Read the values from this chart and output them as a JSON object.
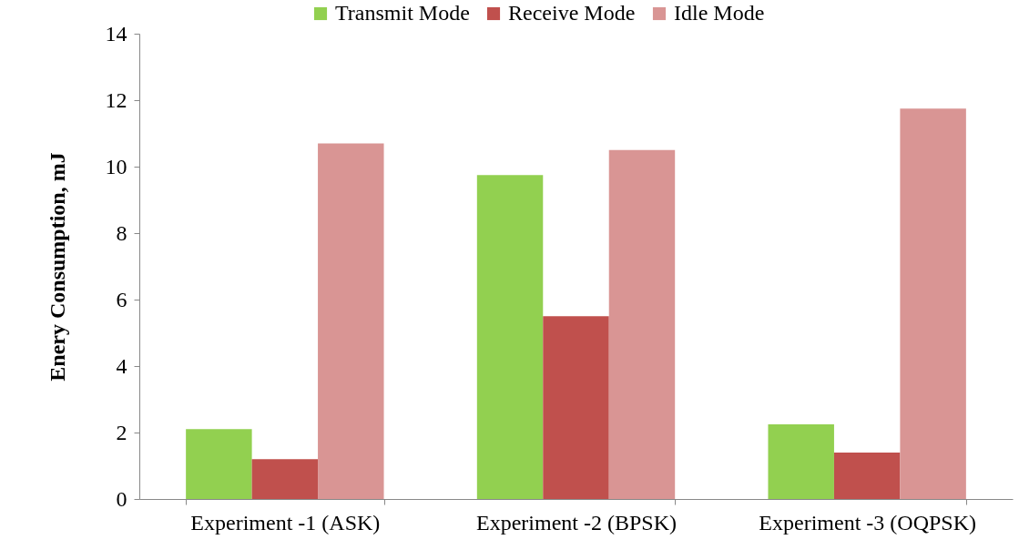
{
  "chart_data": {
    "type": "bar",
    "ylabel": "Enery Consumption, mJ",
    "categories": [
      "Experiment -1 (ASK)",
      "Experiment -2 (BPSK)",
      "Experiment -3 (OQPSK)"
    ],
    "series": [
      {
        "name": "Transmit Mode",
        "color": "#92d050",
        "values": [
          2.1,
          9.75,
          2.25
        ]
      },
      {
        "name": "Receive Mode",
        "color": "#c0504d",
        "values": [
          1.2,
          5.5,
          1.4
        ]
      },
      {
        "name": "Idle Mode",
        "color": "#d99594",
        "values": [
          10.7,
          10.5,
          11.75
        ]
      }
    ],
    "ylim": [
      0,
      14
    ],
    "yticks": [
      0,
      2,
      4,
      6,
      8,
      10,
      12,
      14
    ],
    "grid": false,
    "legend": "top"
  }
}
